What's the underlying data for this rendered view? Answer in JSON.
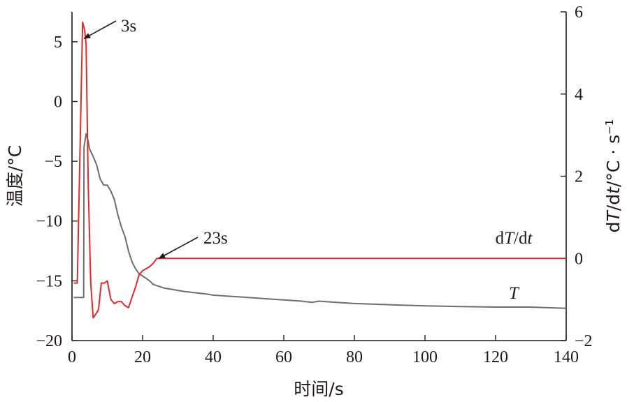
{
  "chart_data": {
    "type": "line",
    "xlabel": "时间/s",
    "ylabel_left": "温度/°C",
    "ylabel_right_parts": [
      "d",
      "T",
      "/d",
      "t",
      "/°C · s",
      "−1"
    ],
    "xlim": [
      0,
      140
    ],
    "ylim_left": [
      -20,
      7.5
    ],
    "ylim_right": [
      -2,
      6
    ],
    "x_ticks": [
      0,
      20,
      40,
      60,
      80,
      100,
      120,
      140
    ],
    "x_tick_labels": [
      "0",
      "20",
      "40",
      "60",
      "80",
      "100",
      "120",
      "140"
    ],
    "y_left_ticks": [
      5,
      0,
      -5,
      -10,
      -15,
      -20
    ],
    "y_left_tick_labels": [
      "5",
      "0",
      "−5",
      "−10",
      "−15",
      "−20"
    ],
    "y_right_ticks": [
      6,
      4,
      2,
      0,
      -2
    ],
    "y_right_tick_labels": [
      "6",
      "4",
      "2",
      "0",
      "−2"
    ],
    "grid": false,
    "series": [
      {
        "label_parts": [
          "T"
        ],
        "axis": "left",
        "color": "#6d6d6d",
        "x": [
          0.5,
          3.3,
          3.4,
          4.0,
          4.5,
          5.0,
          6.0,
          7.0,
          8.0,
          9.0,
          10.0,
          11.0,
          12.0,
          13.0,
          14.0,
          15.0,
          16.0,
          17.0,
          18.0,
          19.0,
          20.0,
          21.0,
          22.0,
          23.0,
          24.0,
          26.0,
          28.0,
          30.0,
          32.0,
          35.0,
          38.0,
          40.0,
          45.0,
          50.0,
          55.0,
          60.0,
          65.0,
          68.0,
          70.0,
          75.0,
          80.0,
          85.0,
          90.0,
          95.0,
          100.0,
          110.0,
          120.0,
          130.0,
          140.0
        ],
        "y": [
          -16.4,
          -16.4,
          -3.8,
          -2.7,
          -3.2,
          -4.0,
          -4.6,
          -5.3,
          -6.5,
          -7.0,
          -7.0,
          -7.5,
          -8.2,
          -9.5,
          -10.5,
          -11.3,
          -12.5,
          -13.4,
          -14.0,
          -14.4,
          -14.6,
          -14.8,
          -15.0,
          -15.3,
          -15.4,
          -15.6,
          -15.7,
          -15.8,
          -15.9,
          -16.0,
          -16.1,
          -16.2,
          -16.3,
          -16.4,
          -16.5,
          -16.6,
          -16.7,
          -16.8,
          -16.7,
          -16.8,
          -16.9,
          -16.95,
          -17.0,
          -17.05,
          -17.1,
          -17.15,
          -17.2,
          -17.2,
          -17.3
        ]
      },
      {
        "label_parts": [
          "d",
          "T",
          "/d",
          "t"
        ],
        "axis": "right",
        "color": "#e0282d",
        "x": [
          0.5,
          1.5,
          3.0,
          3.6,
          4.0,
          4.6,
          5.3,
          6.0,
          6.8,
          7.5,
          8.3,
          9.2,
          10.0,
          11.0,
          12.0,
          13.0,
          14.0,
          15.0,
          16.0,
          17.0,
          18.0,
          19.0,
          20.0,
          21.0,
          22.0,
          23.0,
          24.0,
          140.0
        ],
        "y": [
          -0.6,
          -0.6,
          5.75,
          5.55,
          5.2,
          1.8,
          -0.6,
          -1.45,
          -1.35,
          -1.25,
          -0.6,
          -0.6,
          -0.55,
          -1.0,
          -1.1,
          -1.05,
          -1.05,
          -1.15,
          -1.2,
          -0.95,
          -0.7,
          -0.4,
          -0.3,
          -0.25,
          -0.2,
          -0.12,
          0.0,
          0.0
        ]
      }
    ],
    "annotations": [
      {
        "text": "3s",
        "x": 3.4,
        "axis": "right",
        "y": 5.35
      },
      {
        "text": "23s",
        "x": 24.6,
        "axis": "right",
        "y": 0.0
      }
    ]
  }
}
